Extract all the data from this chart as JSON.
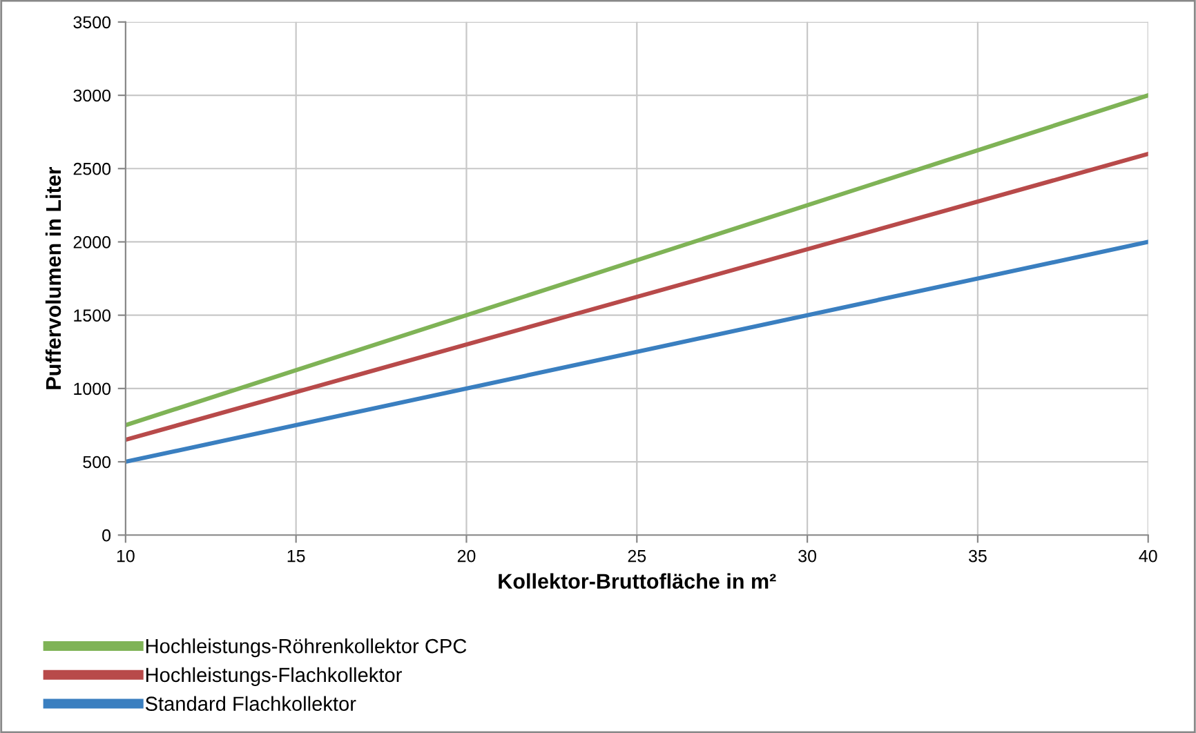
{
  "chart_data": {
    "type": "line",
    "xlabel": "Kollektor-Bruttofläche in m²",
    "ylabel": "Puffervolumen in Liter",
    "x": [
      10,
      40
    ],
    "series": [
      {
        "name": "Hochleistungs-Röhrenkollektor CPC",
        "color": "#7fb356",
        "values": [
          750,
          3000
        ]
      },
      {
        "name": "Hochleistungs-Flachkollektor",
        "color": "#b84a4a",
        "values": [
          650,
          2600
        ]
      },
      {
        "name": "Standard Flachkollektor",
        "color": "#3a7fc0",
        "values": [
          500,
          2000
        ]
      }
    ],
    "xlim": [
      10,
      40
    ],
    "xticks": [
      10,
      15,
      20,
      25,
      30,
      35,
      40
    ],
    "ylim": [
      0,
      3500
    ],
    "yticks": [
      0,
      500,
      1000,
      1500,
      2000,
      2500,
      3000,
      3500
    ],
    "grid": true,
    "legend": "bottom left",
    "marker": "none",
    "line_style": "solid"
  }
}
